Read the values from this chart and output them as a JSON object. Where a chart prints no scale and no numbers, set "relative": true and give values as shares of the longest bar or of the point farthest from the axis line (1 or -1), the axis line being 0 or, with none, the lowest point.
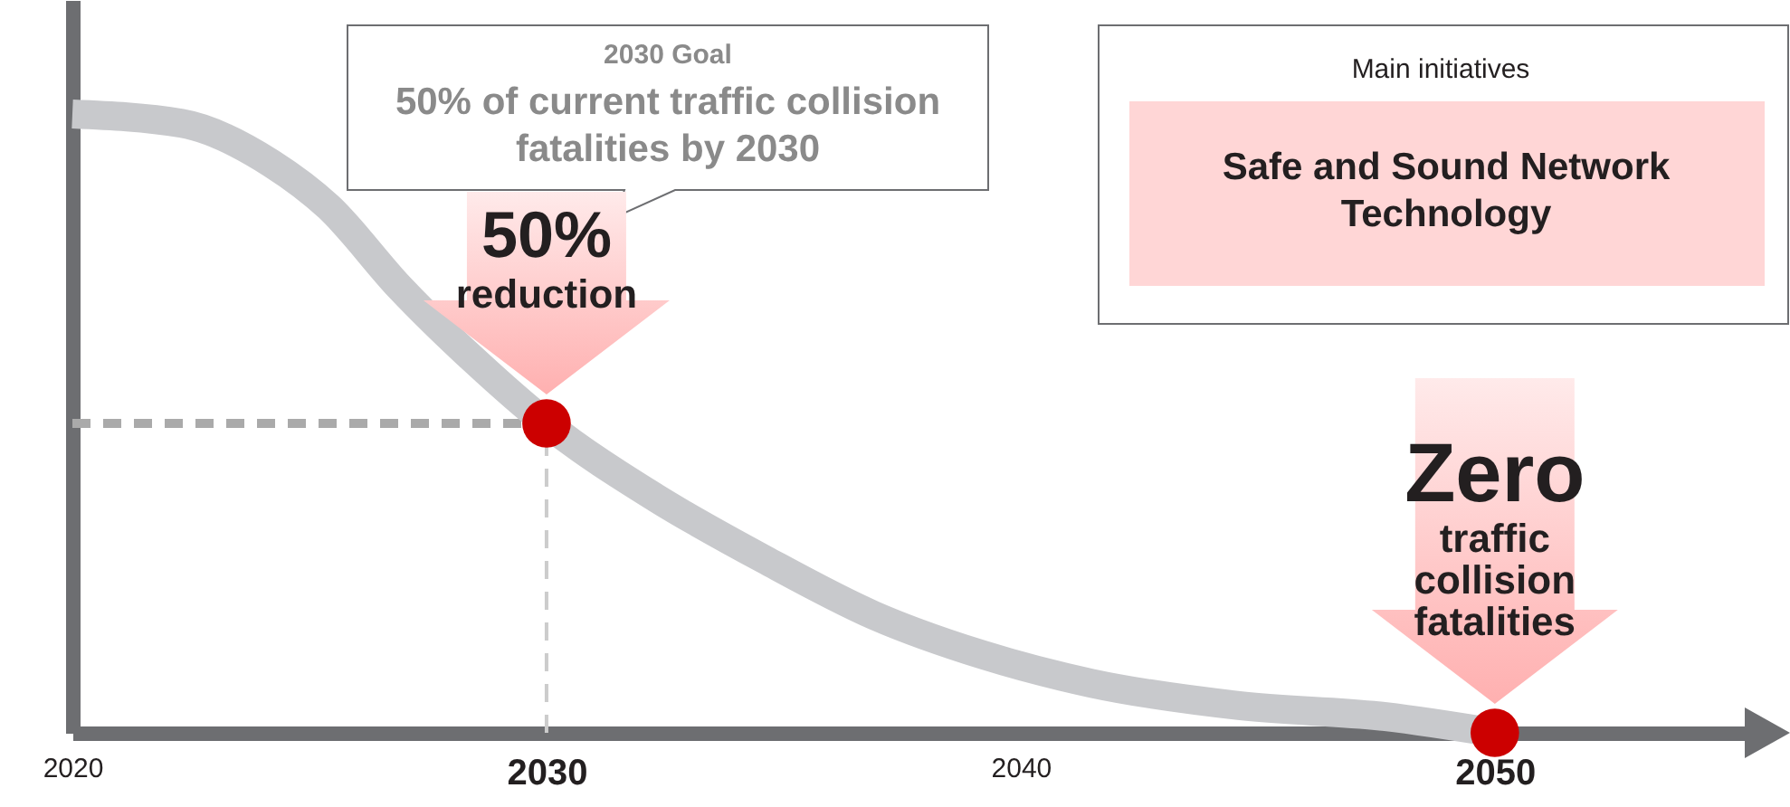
{
  "chart_data": {
    "type": "line",
    "relative": true,
    "xlim": [
      2020,
      2055.5
    ],
    "xticks": [
      2020,
      2030,
      2040,
      2050
    ],
    "series": [
      {
        "color": "#c8c9cc",
        "marker": "none",
        "x": [
          2020,
          2022.3,
          2024.2,
          2025.4,
          2026.9,
          2028.5,
          2030,
          2032.3,
          2034.6,
          2036.9,
          2039.2,
          2041.5,
          2044.6,
          2047.7,
          2050
        ],
        "values": [
          1,
          0.985,
          0.92,
          0.85,
          0.72,
          0.6,
          0.5,
          0.38,
          0.28,
          0.19,
          0.126,
          0.08,
          0.044,
          0.026,
          0
        ]
      },
      {
        "type": "scatter",
        "color": "#cc0000",
        "marker": "circle",
        "x": [
          2030,
          2050
        ],
        "values": [
          0.5,
          0
        ]
      }
    ],
    "ref_lines": [
      {
        "axis": "y",
        "value": 0.5,
        "color": "#aaaaaa",
        "line_style": "dashed"
      },
      {
        "axis": "x",
        "value": 2030,
        "color": "#cccccc",
        "line_style": "dashed"
      }
    ],
    "annotations": [
      "2030 Goal",
      "50% of current traffic collision fatalities by 2030",
      {
        "text": "50% reduction",
        "x": 2030,
        "y": 0.5
      },
      "Main initiatives",
      "Safe and Sound Network Technology",
      {
        "text": "Zero traffic collision fatalities",
        "x": 2050,
        "y": 0
      }
    ]
  }
}
